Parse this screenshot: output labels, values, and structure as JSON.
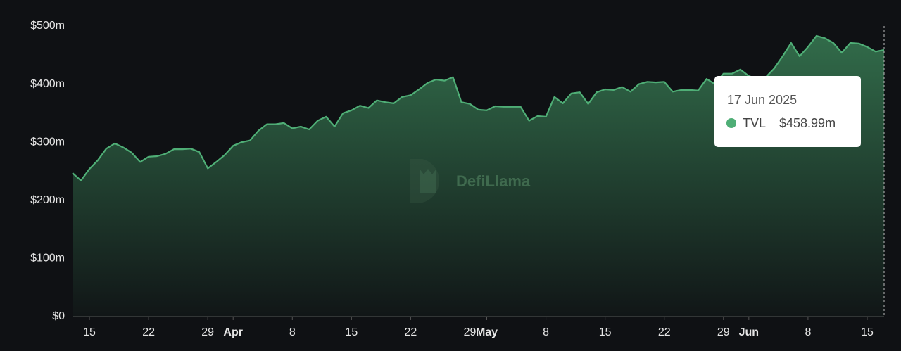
{
  "chart_data": {
    "type": "area",
    "watermark": "DefiLlama",
    "categories": [
      null,
      null,
      "15",
      null,
      null,
      null,
      null,
      null,
      null,
      "22",
      null,
      null,
      null,
      null,
      null,
      null,
      "29",
      null,
      null,
      "Apr",
      null,
      null,
      null,
      null,
      null,
      null,
      "8",
      null,
      null,
      null,
      null,
      null,
      null,
      "15",
      null,
      null,
      null,
      null,
      null,
      null,
      "22",
      null,
      null,
      null,
      null,
      null,
      null,
      "29",
      null,
      "May",
      null,
      null,
      null,
      null,
      null,
      null,
      "8",
      null,
      null,
      null,
      null,
      null,
      null,
      "15",
      null,
      null,
      null,
      null,
      null,
      null,
      "22",
      null,
      null,
      null,
      null,
      null,
      null,
      "29",
      null,
      null,
      "Jun",
      null,
      null,
      null,
      null,
      null,
      null,
      "8",
      null,
      null,
      null,
      null,
      null,
      null,
      "15",
      null,
      null
    ],
    "series": [
      {
        "name": "TVL",
        "color": "#4fae76",
        "values": [
          247,
          234,
          254,
          269,
          289,
          298,
          291,
          282,
          266,
          275,
          276,
          280,
          288,
          288,
          289,
          283,
          255,
          266,
          278,
          294,
          300,
          303,
          320,
          331,
          331,
          333,
          324,
          327,
          322,
          337,
          344,
          327,
          350,
          355,
          363,
          359,
          372,
          369,
          367,
          378,
          381,
          391,
          402,
          408,
          406,
          412,
          369,
          366,
          356,
          355,
          362,
          361,
          361,
          361,
          337,
          345,
          344,
          378,
          367,
          384,
          386,
          366,
          386,
          391,
          390,
          395,
          387,
          400,
          404,
          403,
          404,
          387,
          390,
          390,
          389,
          409,
          400,
          418,
          418,
          425,
          414,
          409,
          412,
          427,
          448,
          471,
          448,
          464,
          483,
          479,
          471,
          454,
          471,
          470,
          464,
          456,
          458.99
        ]
      }
    ],
    "ylim": [
      0,
      500
    ],
    "yticks": [
      {
        "value": 0,
        "label": "$0"
      },
      {
        "value": 100,
        "label": "$100m"
      },
      {
        "value": 200,
        "label": "$200m"
      },
      {
        "value": 300,
        "label": "$300m"
      },
      {
        "value": 400,
        "label": "$400m"
      },
      {
        "value": 500,
        "label": "$500m"
      }
    ],
    "tooltip": {
      "title": "17 Jun 2025",
      "value_label": "$458.99m"
    }
  }
}
